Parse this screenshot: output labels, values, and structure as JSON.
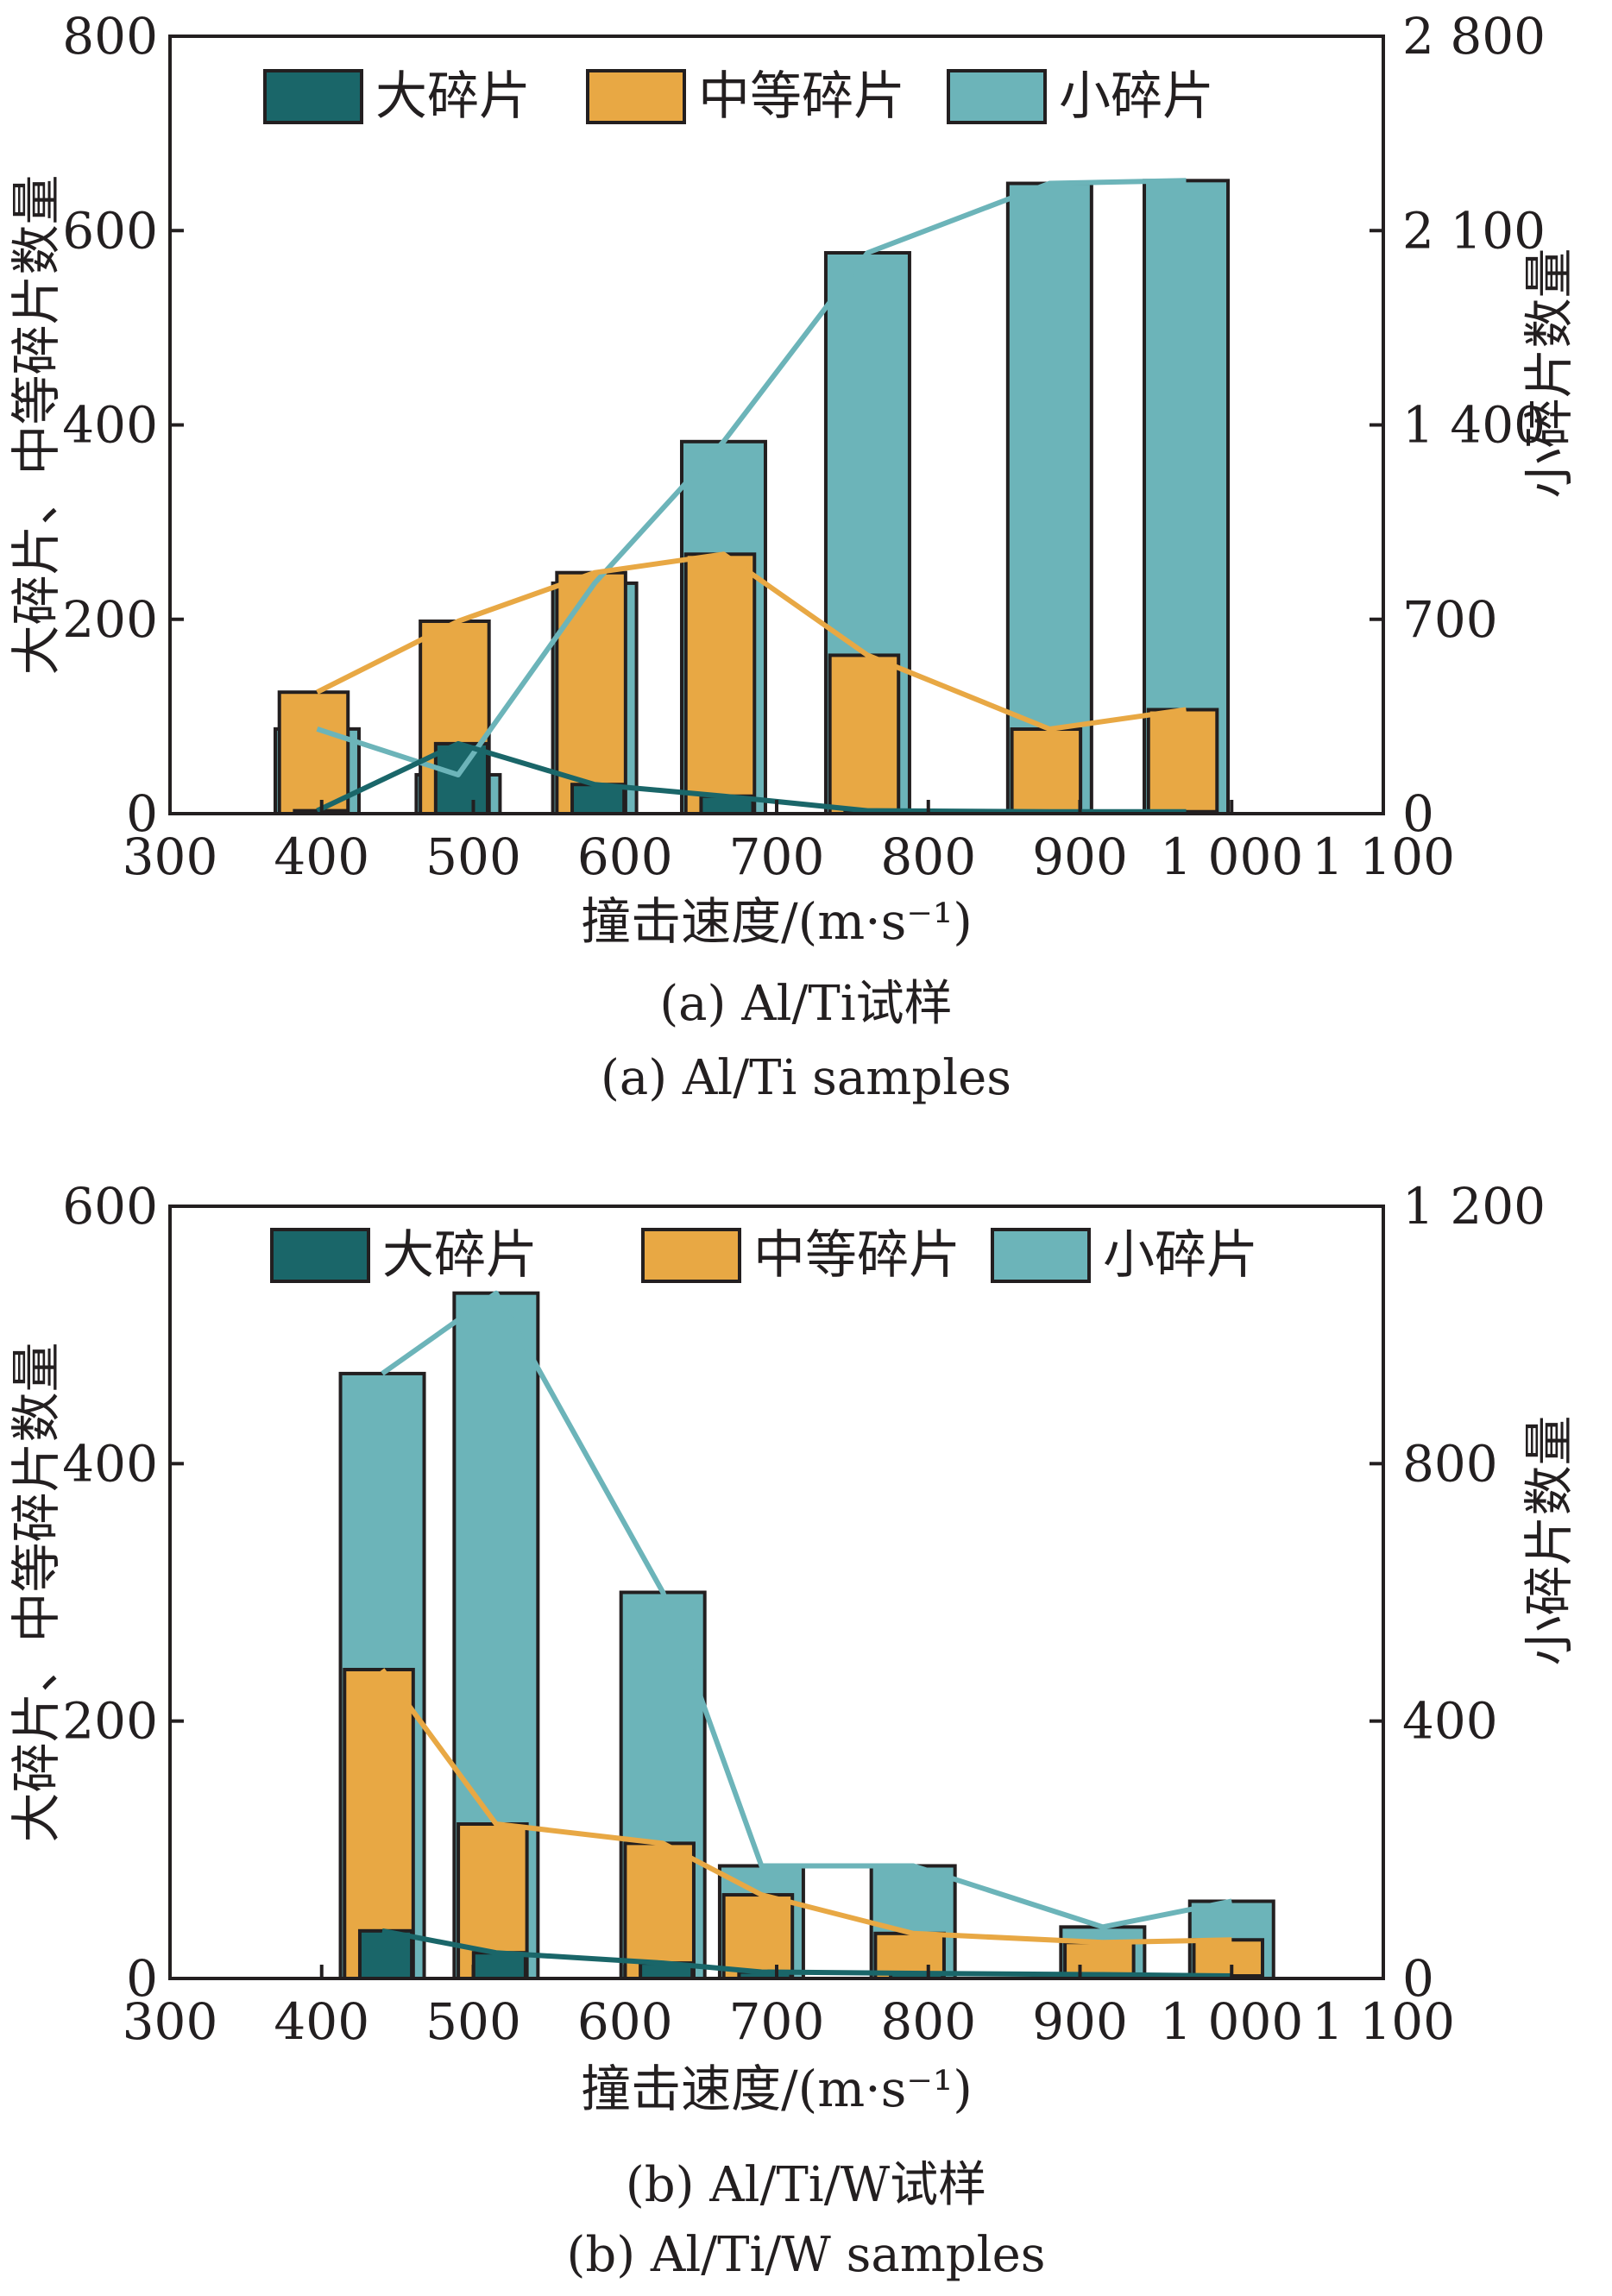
{
  "colors": {
    "large": "#1a6669",
    "medium": "#e8a844",
    "small": "#6cb4b9",
    "axis": "#231f20"
  },
  "legend": [
    "大碎片",
    "中等碎片",
    "小碎片"
  ],
  "chart_data": [
    {
      "type": "bar",
      "caption_cn": "(a) Al/Ti试样",
      "caption_en": "(a) Al/Ti samples",
      "xlabel": "撞击速度/(m·s⁻¹)",
      "ylabel_left": "大碎片、中等碎片数量",
      "ylabel_right": "小碎片数量",
      "xlim": [
        300,
        1100
      ],
      "xticks": [
        "300",
        "400",
        "500",
        "600",
        "700",
        "800",
        "900",
        "1 000",
        "1 100"
      ],
      "ylim_left": [
        0,
        800
      ],
      "yticks_left": [
        "0",
        "200",
        "400",
        "600",
        "800"
      ],
      "ylim_right": [
        0,
        2800
      ],
      "yticks_right": [
        "0",
        "700",
        "1 400",
        "2 100",
        "2 800"
      ],
      "series": [
        {
          "name": "大碎片",
          "axis": "left",
          "x": [
            397,
            490,
            580,
            665,
            760,
            880,
            970
          ],
          "values": [
            3,
            72,
            30,
            18,
            3,
            2,
            2
          ]
        },
        {
          "name": "中等碎片",
          "axis": "left",
          "x": [
            397,
            490,
            580,
            665,
            760,
            880,
            970
          ],
          "values": [
            125,
            198,
            248,
            267,
            163,
            87,
            107
          ]
        },
        {
          "name": "小碎片",
          "axis": "right",
          "x": [
            397,
            490,
            580,
            665,
            760,
            880,
            970
          ],
          "values": [
            305,
            140,
            830,
            1340,
            2020,
            2270,
            2280
          ]
        }
      ]
    },
    {
      "type": "bar",
      "caption_cn": "(b) Al/Ti/W试样",
      "caption_en": "(b) Al/Ti/W samples",
      "xlabel": "撞击速度/(m·s⁻¹)",
      "ylabel_left": "大碎片、中等碎片数量",
      "ylabel_right": "小碎片数量",
      "xlim": [
        300,
        1100
      ],
      "xticks": [
        "300",
        "400",
        "500",
        "600",
        "700",
        "800",
        "900",
        "1 000",
        "1 100"
      ],
      "ylim_left": [
        0,
        600
      ],
      "yticks_left": [
        "0",
        "200",
        "400",
        "600"
      ],
      "ylim_right": [
        0,
        1200
      ],
      "yticks_right": [
        "0",
        "400",
        "800",
        "1 200"
      ],
      "series": [
        {
          "name": "大碎片",
          "axis": "left",
          "x": [
            440,
            515,
            625,
            690,
            790,
            915,
            1000
          ],
          "values": [
            37,
            20,
            12,
            5,
            4,
            3,
            2
          ]
        },
        {
          "name": "中等碎片",
          "axis": "left",
          "x": [
            440,
            515,
            625,
            690,
            790,
            915,
            1000
          ],
          "values": [
            240,
            120,
            105,
            65,
            35,
            28,
            30
          ]
        },
        {
          "name": "小碎片",
          "axis": "right",
          "x": [
            440,
            515,
            625,
            690,
            790,
            915,
            1000
          ],
          "values": [
            940,
            1065,
            600,
            175,
            175,
            80,
            120
          ]
        }
      ]
    }
  ]
}
